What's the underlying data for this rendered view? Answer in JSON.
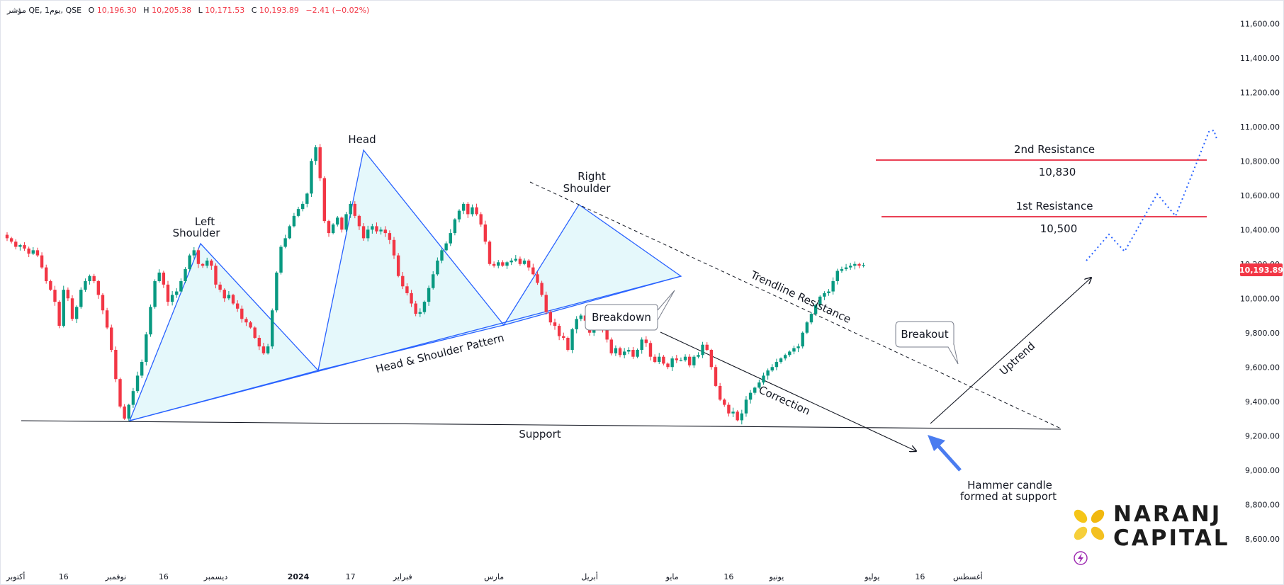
{
  "header": {
    "symbol": "مؤشر QE, 1يوم, QSE",
    "open_label": "O",
    "open": "10,196.30",
    "high_label": "H",
    "high": "10,205.38",
    "low_label": "L",
    "low": "10,171.53",
    "close_label": "C",
    "close": "10,193.89",
    "change": "−2.41 (−0.02%)"
  },
  "colors": {
    "up": "#089981",
    "down": "#f23645",
    "pattern": "#2962ff",
    "pattern_fill": "#e0f7fa",
    "resistance": "#e4001b",
    "price_tag": "#f23645",
    "projection": "#2962ff"
  },
  "price_axis": {
    "last_price": "10,193.89"
  },
  "annotations": {
    "head": "Head",
    "left_shoulder_1": "Left",
    "left_shoulder_2": "Shoulder",
    "right_shoulder_1": "Right",
    "right_shoulder_2": "Shoulder",
    "pattern_label": "Head & Shoulder Pattern",
    "support": "Support",
    "breakdown": "Breakdown",
    "correction": "Correction",
    "trendline_resistance": "Trendline Resistance",
    "breakout": "Breakout",
    "uptrend": "Uptrend",
    "hammer_1": "Hammer candle",
    "hammer_2": "formed at support",
    "resistance_2_label": "2nd Resistance",
    "resistance_2_value": "10,830",
    "resistance_1_label": "1st Resistance",
    "resistance_1_value": "10,500"
  },
  "logo": {
    "line1": "NARANJ",
    "line2": "CAPITAL"
  },
  "chart_data": {
    "type": "candlestick",
    "title": "",
    "ylim": [
      8500,
      11700
    ],
    "y_ticks": [
      8600,
      8800,
      9000,
      9200,
      9400,
      9600,
      9800,
      10000,
      10200,
      10400,
      10600,
      10800,
      11000,
      11200,
      11400,
      11600
    ],
    "y_tick_labels": [
      "8,600.00",
      "8,800.00",
      "9,000.00",
      "9,200.00",
      "9,400.00",
      "9,600.00",
      "9,800.00",
      "10,000.00",
      "10,200.00",
      "10,400.00",
      "10,600.00",
      "10,800.00",
      "11,000.00",
      "11,200.00",
      "11,400.00",
      "11,600.00"
    ],
    "x_labels": [
      {
        "label": "أكتوبر",
        "idx": 2
      },
      {
        "label": "16",
        "idx": 13
      },
      {
        "label": "نوفمبر",
        "idx": 25
      },
      {
        "label": "16",
        "idx": 36
      },
      {
        "label": "ديسمبر",
        "idx": 48
      },
      {
        "label": "2024",
        "idx": 67
      },
      {
        "label": "17",
        "idx": 79
      },
      {
        "label": "فبراير",
        "idx": 91
      },
      {
        "label": "مارس",
        "idx": 112
      },
      {
        "label": "أبريل",
        "idx": 134
      },
      {
        "label": "مايو",
        "idx": 153
      },
      {
        "label": "16",
        "idx": 166
      },
      {
        "label": "يونيو",
        "idx": 177
      },
      {
        "label": "يوليو",
        "idx": 199
      },
      {
        "label": "16",
        "idx": 210
      },
      {
        "label": "أغسطس",
        "idx": 221
      }
    ],
    "closes": [
      10350,
      10330,
      10300,
      10310,
      10290,
      10260,
      10280,
      10250,
      10180,
      10100,
      10050,
      9980,
      9840,
      10050,
      10000,
      9880,
      9950,
      10050,
      10100,
      10130,
      10100,
      10020,
      9930,
      9830,
      9700,
      9530,
      9370,
      9300,
      9380,
      9460,
      9550,
      9630,
      9790,
      9950,
      10100,
      10150,
      10080,
      9980,
      10020,
      10040,
      10100,
      10170,
      10250,
      10280,
      10200,
      10190,
      10220,
      10190,
      10080,
      10050,
      10000,
      10020,
      9970,
      9940,
      9880,
      9860,
      9830,
      9770,
      9720,
      9680,
      9720,
      9930,
      10150,
      10300,
      10350,
      10420,
      10480,
      10520,
      10550,
      10610,
      10800,
      10880,
      10700,
      10450,
      10380,
      10430,
      10470,
      10400,
      10490,
      10550,
      10480,
      10420,
      10350,
      10400,
      10420,
      10390,
      10400,
      10380,
      10340,
      10250,
      10130,
      10070,
      10030,
      9970,
      9910,
      9920,
      9980,
      10060,
      10140,
      10220,
      10280,
      10320,
      10380,
      10460,
      10510,
      10550,
      10490,
      10530,
      10490,
      10430,
      10330,
      10200,
      10190,
      10210,
      10190,
      10210,
      10220,
      10230,
      10200,
      10220,
      10180,
      10140,
      10090,
      10020,
      9920,
      9860,
      9840,
      9780,
      9770,
      9700,
      9820,
      9880,
      9900,
      9870,
      9800,
      9840,
      9860,
      9820,
      9760,
      9680,
      9710,
      9670,
      9690,
      9700,
      9660,
      9700,
      9760,
      9740,
      9660,
      9630,
      9660,
      9620,
      9600,
      9650,
      9640,
      9640,
      9660,
      9610,
      9660,
      9670,
      9730,
      9700,
      9600,
      9490,
      9410,
      9380,
      9330,
      9340,
      9290,
      9330,
      9410,
      9450,
      9480,
      9510,
      9550,
      9580,
      9600,
      9630,
      9650,
      9670,
      9690,
      9710,
      9720,
      9800,
      9860,
      9910,
      9960,
      10010,
      10030,
      10040,
      10100,
      10160,
      10170,
      10180,
      10190,
      10200,
      10190,
      10194
    ]
  }
}
